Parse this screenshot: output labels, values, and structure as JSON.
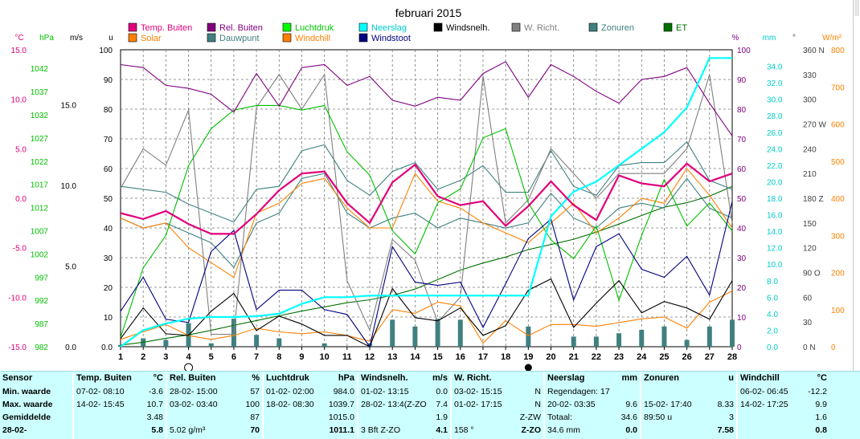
{
  "chart_data": {
    "type": "line",
    "title": "februari 2015",
    "x": [
      1,
      2,
      3,
      4,
      5,
      6,
      7,
      8,
      9,
      10,
      11,
      12,
      13,
      14,
      15,
      16,
      17,
      18,
      19,
      20,
      21,
      22,
      23,
      24,
      25,
      26,
      27,
      28
    ],
    "xlim": [
      1,
      28
    ],
    "xlabel": "",
    "grid": true,
    "legend_position": "top",
    "axes": [
      {
        "unit": "°C",
        "ticks": [
          "15.0",
          "10.0",
          "5.0",
          "0.0",
          "-5.0",
          "-10.0",
          "-15.0"
        ],
        "range": [
          -15,
          15
        ],
        "color": "#e0007a"
      },
      {
        "unit": "hPa",
        "ticks": [
          "1042",
          "1037",
          "1032",
          "1027",
          "1022",
          "1017",
          "1012",
          "1007",
          "1002",
          "997",
          "992",
          "987",
          "982"
        ],
        "range": [
          982,
          1046
        ],
        "color": "#00c000"
      },
      {
        "unit": "m/s",
        "ticks": [
          "15.0",
          "10.0",
          "5.0",
          "0.0"
        ],
        "range": [
          0,
          18.4
        ],
        "color": "#000000"
      },
      {
        "unit": "u",
        "ticks": [
          "100",
          "90",
          "80",
          "70",
          "60",
          "50",
          "40",
          "30",
          "20",
          "10",
          "0.0"
        ],
        "range": [
          0,
          100
        ],
        "color": "#000000"
      },
      {
        "unit": "%",
        "ticks": [
          "100",
          "90",
          "80",
          "70",
          "60",
          "50",
          "40",
          "30",
          "20",
          "10",
          "0"
        ],
        "range": [
          0,
          100
        ],
        "color": "#800080"
      },
      {
        "unit": "mm",
        "ticks": [
          "34.0",
          "32.0",
          "30.0",
          "28.0",
          "26.0",
          "24.0",
          "22.0",
          "20.0",
          "18.0",
          "16.0",
          "14.0",
          "12.0",
          "10.0",
          "8.0",
          "6.0",
          "4.0",
          "2.0",
          "0.0"
        ],
        "range": [
          0,
          36
        ],
        "color": "#00cccc"
      },
      {
        "unit": "°",
        "ticks": [
          "360 N",
          "330",
          "300",
          "270 W",
          "240",
          "210",
          "180 Z",
          "150",
          "120",
          "90 O",
          "60",
          "30",
          "0 N"
        ],
        "range": [
          0,
          360
        ],
        "color": "#404040"
      },
      {
        "unit": "W/m²",
        "ticks": [
          "800",
          "700",
          "600",
          "500",
          "400",
          "300",
          "200",
          "100",
          "0"
        ],
        "range": [
          0,
          800
        ],
        "color": "#ff8000"
      }
    ],
    "moon_phases": {
      "full_moon_day": 4,
      "new_moon_day": 19
    },
    "series": [
      {
        "name": "Temp. Buiten",
        "axis": "°C",
        "color": "#e0007a",
        "values": [
          -1.5,
          -2.1,
          -1.3,
          -2.6,
          -3.6,
          -3.6,
          -1.6,
          0.8,
          2.5,
          2.7,
          -0.5,
          -2.5,
          1.6,
          3.4,
          0.2,
          -0.7,
          -0.3,
          -2.8,
          -0.8,
          1.7,
          -0.7,
          -2.2,
          2.3,
          1.5,
          1.2,
          3.5,
          1.7,
          2.5
        ]
      },
      {
        "name": "Rel. Buiten",
        "axis": "%",
        "color": "#800080",
        "values": [
          95,
          94,
          88,
          87,
          85,
          79,
          92,
          81,
          94,
          95,
          88,
          91,
          83,
          81,
          84,
          83,
          92,
          96,
          84,
          95,
          91,
          86,
          82,
          90,
          91,
          94,
          82,
          71
        ]
      },
      {
        "name": "Luchtdruk",
        "axis": "hPa",
        "color": "#00c000",
        "values": [
          984,
          999,
          1006,
          1021,
          1029,
          1033,
          1034,
          1034,
          1033,
          1034,
          1024,
          1019,
          1007,
          1002,
          1013,
          1016,
          1027,
          1029,
          1013,
          1005,
          1001,
          1008,
          992,
          1006,
          1018,
          1008,
          1013,
          1007
        ]
      },
      {
        "name": "Neerslag",
        "axis": "mm",
        "color": "#00ffff",
        "values": [
          0.0,
          2.0,
          2.8,
          3.4,
          3.6,
          3.6,
          3.7,
          4.0,
          5.2,
          6.0,
          6.0,
          6.2,
          6.2,
          6.2,
          6.2,
          6.2,
          6.2,
          6.2,
          6.2,
          15.8,
          18.8,
          20.0,
          22.0,
          24.0,
          26.0,
          29.0,
          35.0,
          35.0
        ]
      },
      {
        "name": "Windsnelh.",
        "axis": "m/s",
        "color": "#000000",
        "values": [
          0.5,
          2.4,
          0.8,
          0.7,
          2.2,
          3.3,
          1.0,
          1.9,
          1.4,
          0.7,
          0.7,
          0.0,
          3.6,
          1.8,
          1.6,
          2.4,
          0.7,
          1.3,
          3.5,
          4.2,
          1.2,
          2.7,
          4.1,
          2.1,
          2.8,
          2.4,
          1.7,
          4.1
        ]
      },
      {
        "name": "W. Richt.",
        "axis": "°",
        "color": "#808080",
        "values": [
          192,
          240,
          220,
          287,
          15,
          15,
          290,
          330,
          288,
          330,
          80,
          20,
          130,
          105,
          30,
          60,
          328,
          150,
          178,
          240,
          210,
          180,
          210,
          210,
          210,
          240,
          330,
          150
        ]
      },
      {
        "name": "Zonuren",
        "axis": "u",
        "color": "#408080",
        "values": [
          54,
          53,
          52,
          48,
          45,
          42,
          53,
          54,
          66,
          68,
          56,
          51,
          59,
          62,
          53,
          56,
          61,
          52,
          52,
          66,
          54,
          51,
          61,
          62,
          62,
          69,
          56,
          53
        ]
      },
      {
        "name": "ET",
        "axis": "u",
        "color": "#007000",
        "values": [
          0.5,
          1.5,
          2.8,
          4.0,
          5.5,
          7.2,
          8.8,
          10.4,
          12.0,
          13.4,
          14.8,
          15.8,
          17.3,
          19.4,
          22.6,
          25.8,
          28.2,
          30.2,
          32.7,
          34.4,
          36.2,
          38.6,
          41.3,
          44.2,
          47.0,
          48.5,
          50.7,
          54.0
        ]
      },
      {
        "name": "Solar",
        "axis": "W/m²",
        "color": "#ff8000",
        "values": [
          20,
          40,
          60,
          30,
          20,
          30,
          50,
          40,
          35,
          40,
          30,
          15,
          100,
          90,
          120,
          110,
          10,
          70,
          30,
          60,
          60,
          55,
          65,
          75,
          80,
          50,
          120,
          150
        ]
      },
      {
        "name": "Dauwpunt",
        "axis": "°C",
        "color": "#408080",
        "values": [
          -2,
          -3,
          -2.5,
          -3.5,
          -4.5,
          -7,
          -2.5,
          -1.5,
          2,
          2.5,
          -1.5,
          -3,
          -2,
          -1.5,
          -3,
          -2,
          -2.5,
          -3,
          -2.5,
          0.5,
          -2,
          -3,
          -1,
          -0.5,
          -1,
          2,
          -1,
          -2
        ]
      },
      {
        "name": "Windchill",
        "axis": "°C",
        "color": "#ff8000",
        "values": [
          -2,
          -3,
          -2.5,
          -5,
          -6.5,
          -8,
          -1.5,
          -0.5,
          1.5,
          2,
          -1,
          -3,
          -3,
          2.5,
          -0.3,
          -1,
          -2.5,
          -3.5,
          -4.5,
          -2.5,
          -0.5,
          -3.5,
          -2,
          0,
          -0.5,
          3,
          0.3,
          -3
        ]
      },
      {
        "name": "Windstoot",
        "axis": "m/s",
        "color": "#000080",
        "values": [
          2.2,
          4.3,
          1.7,
          1.5,
          5.9,
          7.2,
          2.3,
          3.5,
          3.5,
          2.3,
          2.0,
          0.0,
          6.2,
          4.0,
          3.8,
          4.0,
          1.2,
          3.9,
          6.7,
          7.9,
          2.9,
          6.2,
          7.0,
          4.8,
          4.3,
          5.6,
          3.2,
          9.0
        ]
      },
      {
        "name": "Zonuren (dag)",
        "axis": "u",
        "color": "#408080",
        "values": [
          0.5,
          2.5,
          2,
          7,
          1,
          8.3,
          3.5,
          2.5,
          0,
          1,
          0,
          1,
          8,
          6,
          8.3,
          8,
          0,
          0,
          6,
          0,
          3,
          3,
          4,
          5,
          6,
          2,
          6,
          8
        ]
      }
    ]
  },
  "legend": [
    {
      "label": "Temp. Buiten",
      "color": "#e0007a",
      "text_color": "#e0007a"
    },
    {
      "label": "Solar",
      "color": "#ff8000",
      "text_color": "#ff8000"
    },
    {
      "label": "Rel. Buiten",
      "color": "#800080",
      "text_color": "#800080"
    },
    {
      "label": "Dauwpunt",
      "color": "#408080",
      "text_color": "#408080"
    },
    {
      "label": "Luchtdruk",
      "color": "#00ff00",
      "text_color": "#00c000"
    },
    {
      "label": "Windchill",
      "color": "#ff8000",
      "text_color": "#ff8000"
    },
    {
      "label": "Neerslag",
      "color": "#00ffff",
      "text_color": "#00cccc"
    },
    {
      "label": "Windstoot",
      "color": "#000080",
      "text_color": "#000080"
    },
    {
      "label": "Windsnelh.",
      "color": "#000000",
      "text_color": "#000000"
    },
    {
      "label": "W. Richt.",
      "color": "#808080",
      "text_color": "#808080"
    },
    {
      "label": "Zonuren",
      "color": "#408080",
      "text_color": "#408080"
    },
    {
      "label": "ET",
      "color": "#007000",
      "text_color": "#007000"
    }
  ],
  "stats": {
    "row_labels": [
      "Sensor",
      "Min. waarde",
      "Max. waarde",
      "Gemiddelde",
      "28-02-"
    ],
    "temp": {
      "title": "Temp. Buiten",
      "unit": "°C",
      "min_date": "07-02- 08:10",
      "min_val": "-3.6",
      "max_date": "14-02- 15:45",
      "max_val": "10.7",
      "avg": "3.48",
      "last": "5.8"
    },
    "rh": {
      "title": "Rel. Buiten",
      "unit": "%",
      "min_date": "28-02- 15:00",
      "min_val": "57",
      "max_date": "03-02- 03:40",
      "max_val": "100",
      "avg": "87",
      "last_extra": "5.02 g/m³",
      "last": "70"
    },
    "baro": {
      "title": "Luchtdruk",
      "unit": "hPa",
      "min_date": "01-02- 02:00",
      "min_val": "984.0",
      "max_date": "18-02- 08:30",
      "max_val": "1039.7",
      "avg": "1015.0",
      "last": "1011.1"
    },
    "wind": {
      "title": "Windsnelh.",
      "unit": "m/s",
      "min_date": "01-02- 13:15",
      "min_val": "0.0",
      "max_date": "28-02- 13:4(Z-ZO",
      "max_val": "7.4",
      "avg": "1.9",
      "last_extra": "3 Bft Z-ZO",
      "last": "4.1"
    },
    "dir": {
      "title": "W. Richt.",
      "min_date": "03-02- 15:15",
      "min_val": "N",
      "max_date": "01-02- 17:15",
      "max_val": "N",
      "avg": "Z-ZW",
      "last_extra": "158 °",
      "last": "Z-ZO"
    },
    "rain": {
      "title": "Neerslag",
      "unit": "mm",
      "line1": "Regendagen: 17",
      "max_date": "20-02- 03:35",
      "max_val": "9.6",
      "total_label": "Totaal:",
      "total_val": "34.6",
      "last_extra": "34.6 mm",
      "last": "0.0"
    },
    "sun": {
      "title": "Zonuren",
      "unit": "u",
      "max_date": "15-02- 17:40",
      "max_val": "8.33",
      "avg_label": "89:50 u",
      "avg": "3",
      "last": "7.58"
    },
    "chill": {
      "title": "Windchill",
      "unit": "°C",
      "min_date": "06-02- 06:45",
      "min_val": "-12.2",
      "max_date": "14-02- 17:25",
      "max_val": "9.9",
      "avg": "1.6",
      "last": "0.8"
    }
  }
}
